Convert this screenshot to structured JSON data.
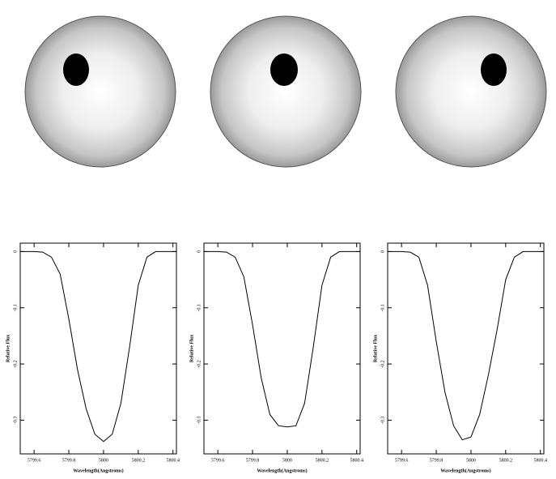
{
  "chart_data": [
    {
      "type": "line",
      "xlabel": "Wavelength(Angstroms)",
      "ylabel": "Relative Flux",
      "x": [
        5799.52,
        5799.6,
        5799.65,
        5799.7,
        5799.75,
        5799.8,
        5799.85,
        5799.9,
        5799.95,
        5800,
        5800.05,
        5800.1,
        5800.15,
        5800.2,
        5800.25,
        5800.3,
        5800.35,
        5800.42
      ],
      "values": [
        0,
        0,
        -0.001,
        -0.01,
        -0.04,
        -0.12,
        -0.21,
        -0.28,
        -0.325,
        -0.338,
        -0.325,
        -0.27,
        -0.17,
        -0.06,
        -0.01,
        0,
        0,
        0
      ],
      "color": "#000000",
      "xlim": [
        5799.52,
        5800.42
      ],
      "ylim": [
        -0.36,
        0.015
      ],
      "xticks": [
        5799.6,
        5799.8,
        5800,
        5800.2,
        5800.4
      ],
      "yticks": [
        0,
        -0.1,
        -0.2,
        -0.3
      ]
    },
    {
      "type": "line",
      "xlabel": "Wavelength(Angstroms)",
      "ylabel": "Relative Flux",
      "x": [
        5799.52,
        5799.6,
        5799.65,
        5799.7,
        5799.75,
        5799.8,
        5799.85,
        5799.9,
        5799.95,
        5800,
        5800.05,
        5800.1,
        5800.15,
        5800.2,
        5800.25,
        5800.3,
        5800.35,
        5800.42
      ],
      "values": [
        0,
        0,
        -0.001,
        -0.01,
        -0.045,
        -0.13,
        -0.225,
        -0.29,
        -0.31,
        -0.312,
        -0.31,
        -0.27,
        -0.17,
        -0.06,
        -0.01,
        0,
        0,
        0
      ],
      "color": "#000000",
      "xlim": [
        5799.52,
        5800.42
      ],
      "ylim": [
        -0.36,
        0.015
      ],
      "xticks": [
        5799.6,
        5799.8,
        5800,
        5800.2,
        5800.4
      ],
      "yticks": [
        0,
        -0.1,
        -0.2,
        -0.3
      ]
    },
    {
      "type": "line",
      "xlabel": "Wavelength(Angstroms)",
      "ylabel": "Relative Flux",
      "x": [
        5799.52,
        5799.6,
        5799.65,
        5799.7,
        5799.75,
        5799.8,
        5799.85,
        5799.9,
        5799.95,
        5800,
        5800.05,
        5800.1,
        5800.15,
        5800.2,
        5800.25,
        5800.3,
        5800.35,
        5800.42
      ],
      "values": [
        0,
        0,
        -0.001,
        -0.01,
        -0.06,
        -0.16,
        -0.25,
        -0.31,
        -0.335,
        -0.33,
        -0.29,
        -0.22,
        -0.14,
        -0.05,
        -0.01,
        0,
        0,
        0
      ],
      "color": "#000000",
      "xlim": [
        5799.52,
        5800.42
      ],
      "ylim": [
        -0.36,
        0.015
      ],
      "xticks": [
        5799.6,
        5799.8,
        5800,
        5800.2,
        5800.4
      ],
      "yticks": [
        0,
        -0.1,
        -0.2,
        -0.3
      ]
    }
  ]
}
